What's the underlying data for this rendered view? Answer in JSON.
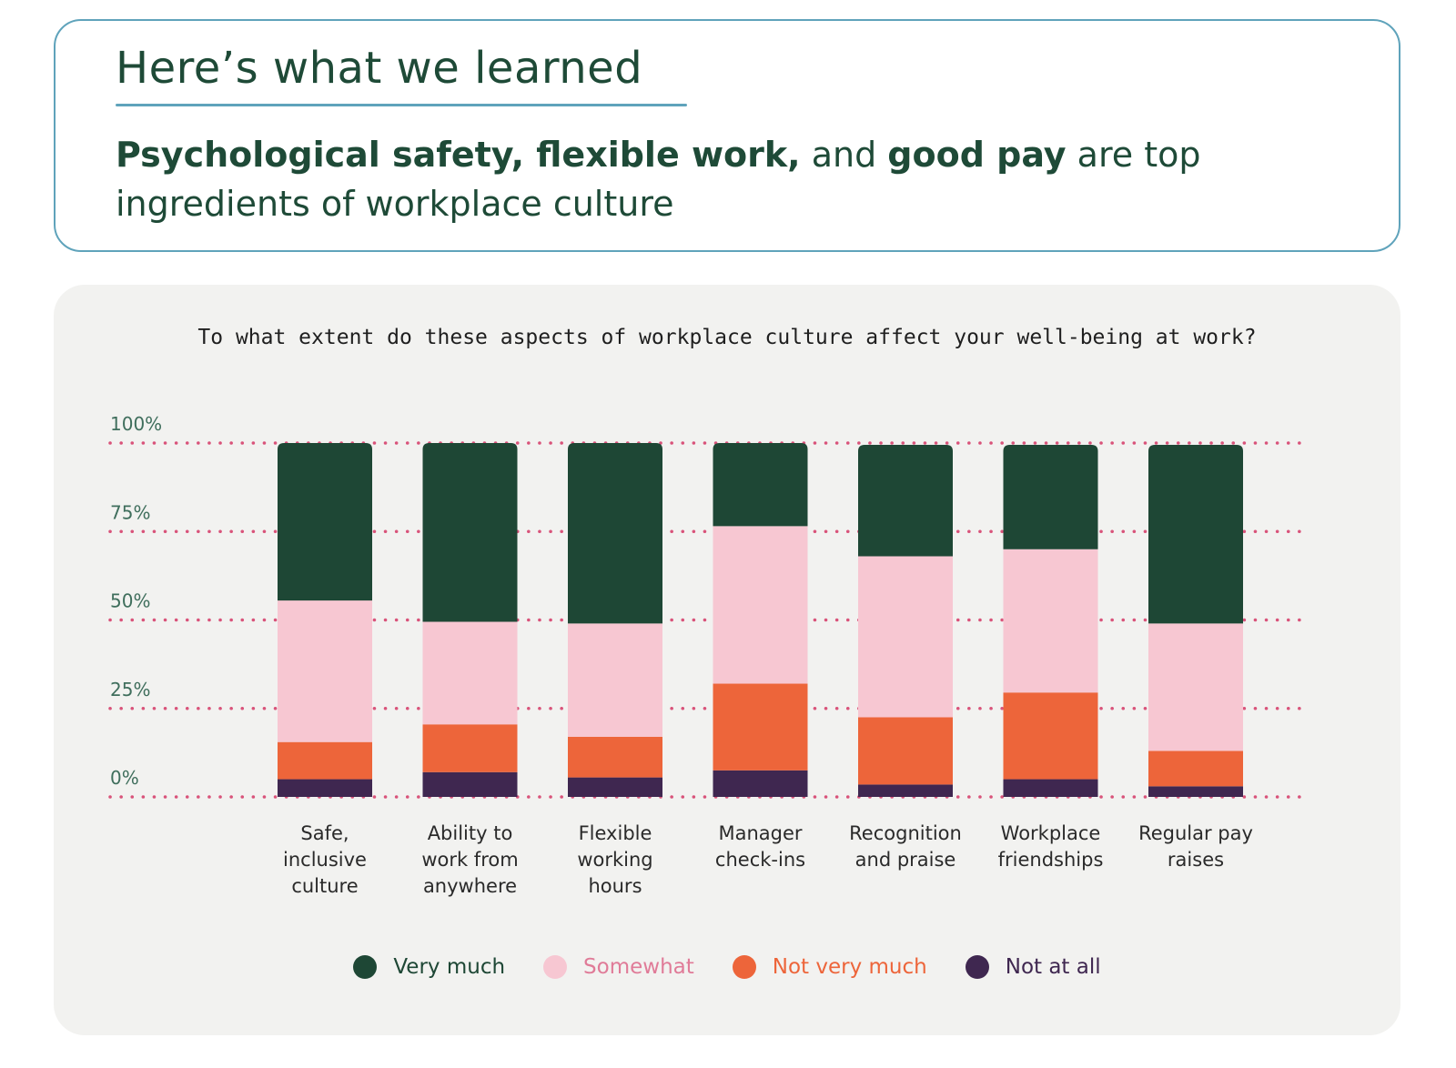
{
  "header": {
    "title": "Here’s what we learned",
    "subtitle_bold_1": "Psychological safety, flexible work,",
    "subtitle_regular_1": " and ",
    "subtitle_bold_2": "good pay",
    "subtitle_regular_2": " are top ingredients of workplace culture"
  },
  "chart_data": {
    "type": "bar",
    "stacked": true,
    "title": "To what extent do these aspects of workplace culture affect your well-being at work?",
    "categories": [
      [
        "Safe,",
        "inclusive",
        "culture"
      ],
      [
        "Ability to",
        "work from",
        "anywhere"
      ],
      [
        "Flexible",
        "working",
        "hours"
      ],
      [
        "Manager",
        "check-ins"
      ],
      [
        "Recognition",
        "and praise"
      ],
      [
        "Workplace",
        "friendships"
      ],
      [
        "Regular pay",
        "raises"
      ]
    ],
    "series": [
      {
        "name": "Not at all",
        "color": "#3f2750",
        "values": [
          5,
          7,
          5.5,
          7.5,
          3.5,
          5,
          3
        ]
      },
      {
        "name": "Not very much",
        "color": "#ed653a",
        "values": [
          10.5,
          13.5,
          11.5,
          24.5,
          19,
          24.5,
          10
        ]
      },
      {
        "name": "Somewhat",
        "color": "#f7c7d2",
        "values": [
          40,
          29,
          32,
          44.5,
          45.5,
          40.5,
          36
        ]
      },
      {
        "name": "Very much",
        "color": "#1e4735",
        "values": [
          44.5,
          50.5,
          51,
          23.5,
          31.5,
          29.5,
          50.5
        ]
      }
    ],
    "ylim": [
      0,
      100
    ],
    "yticks": [
      "0%",
      "25%",
      "50%",
      "75%",
      "100%"
    ],
    "grid": true,
    "gridline_color": "#d9537a",
    "legend_position": "bottom",
    "legend": [
      {
        "name": "Very much",
        "color": "#1e4735",
        "text_color": "#1e4735"
      },
      {
        "name": "Somewhat",
        "color": "#f7c7d2",
        "text_color": "#e07b98"
      },
      {
        "name": "Not very much",
        "color": "#ed653a",
        "text_color": "#ed653a"
      },
      {
        "name": "Not at all",
        "color": "#3f2750",
        "text_color": "#3f2750"
      }
    ]
  }
}
